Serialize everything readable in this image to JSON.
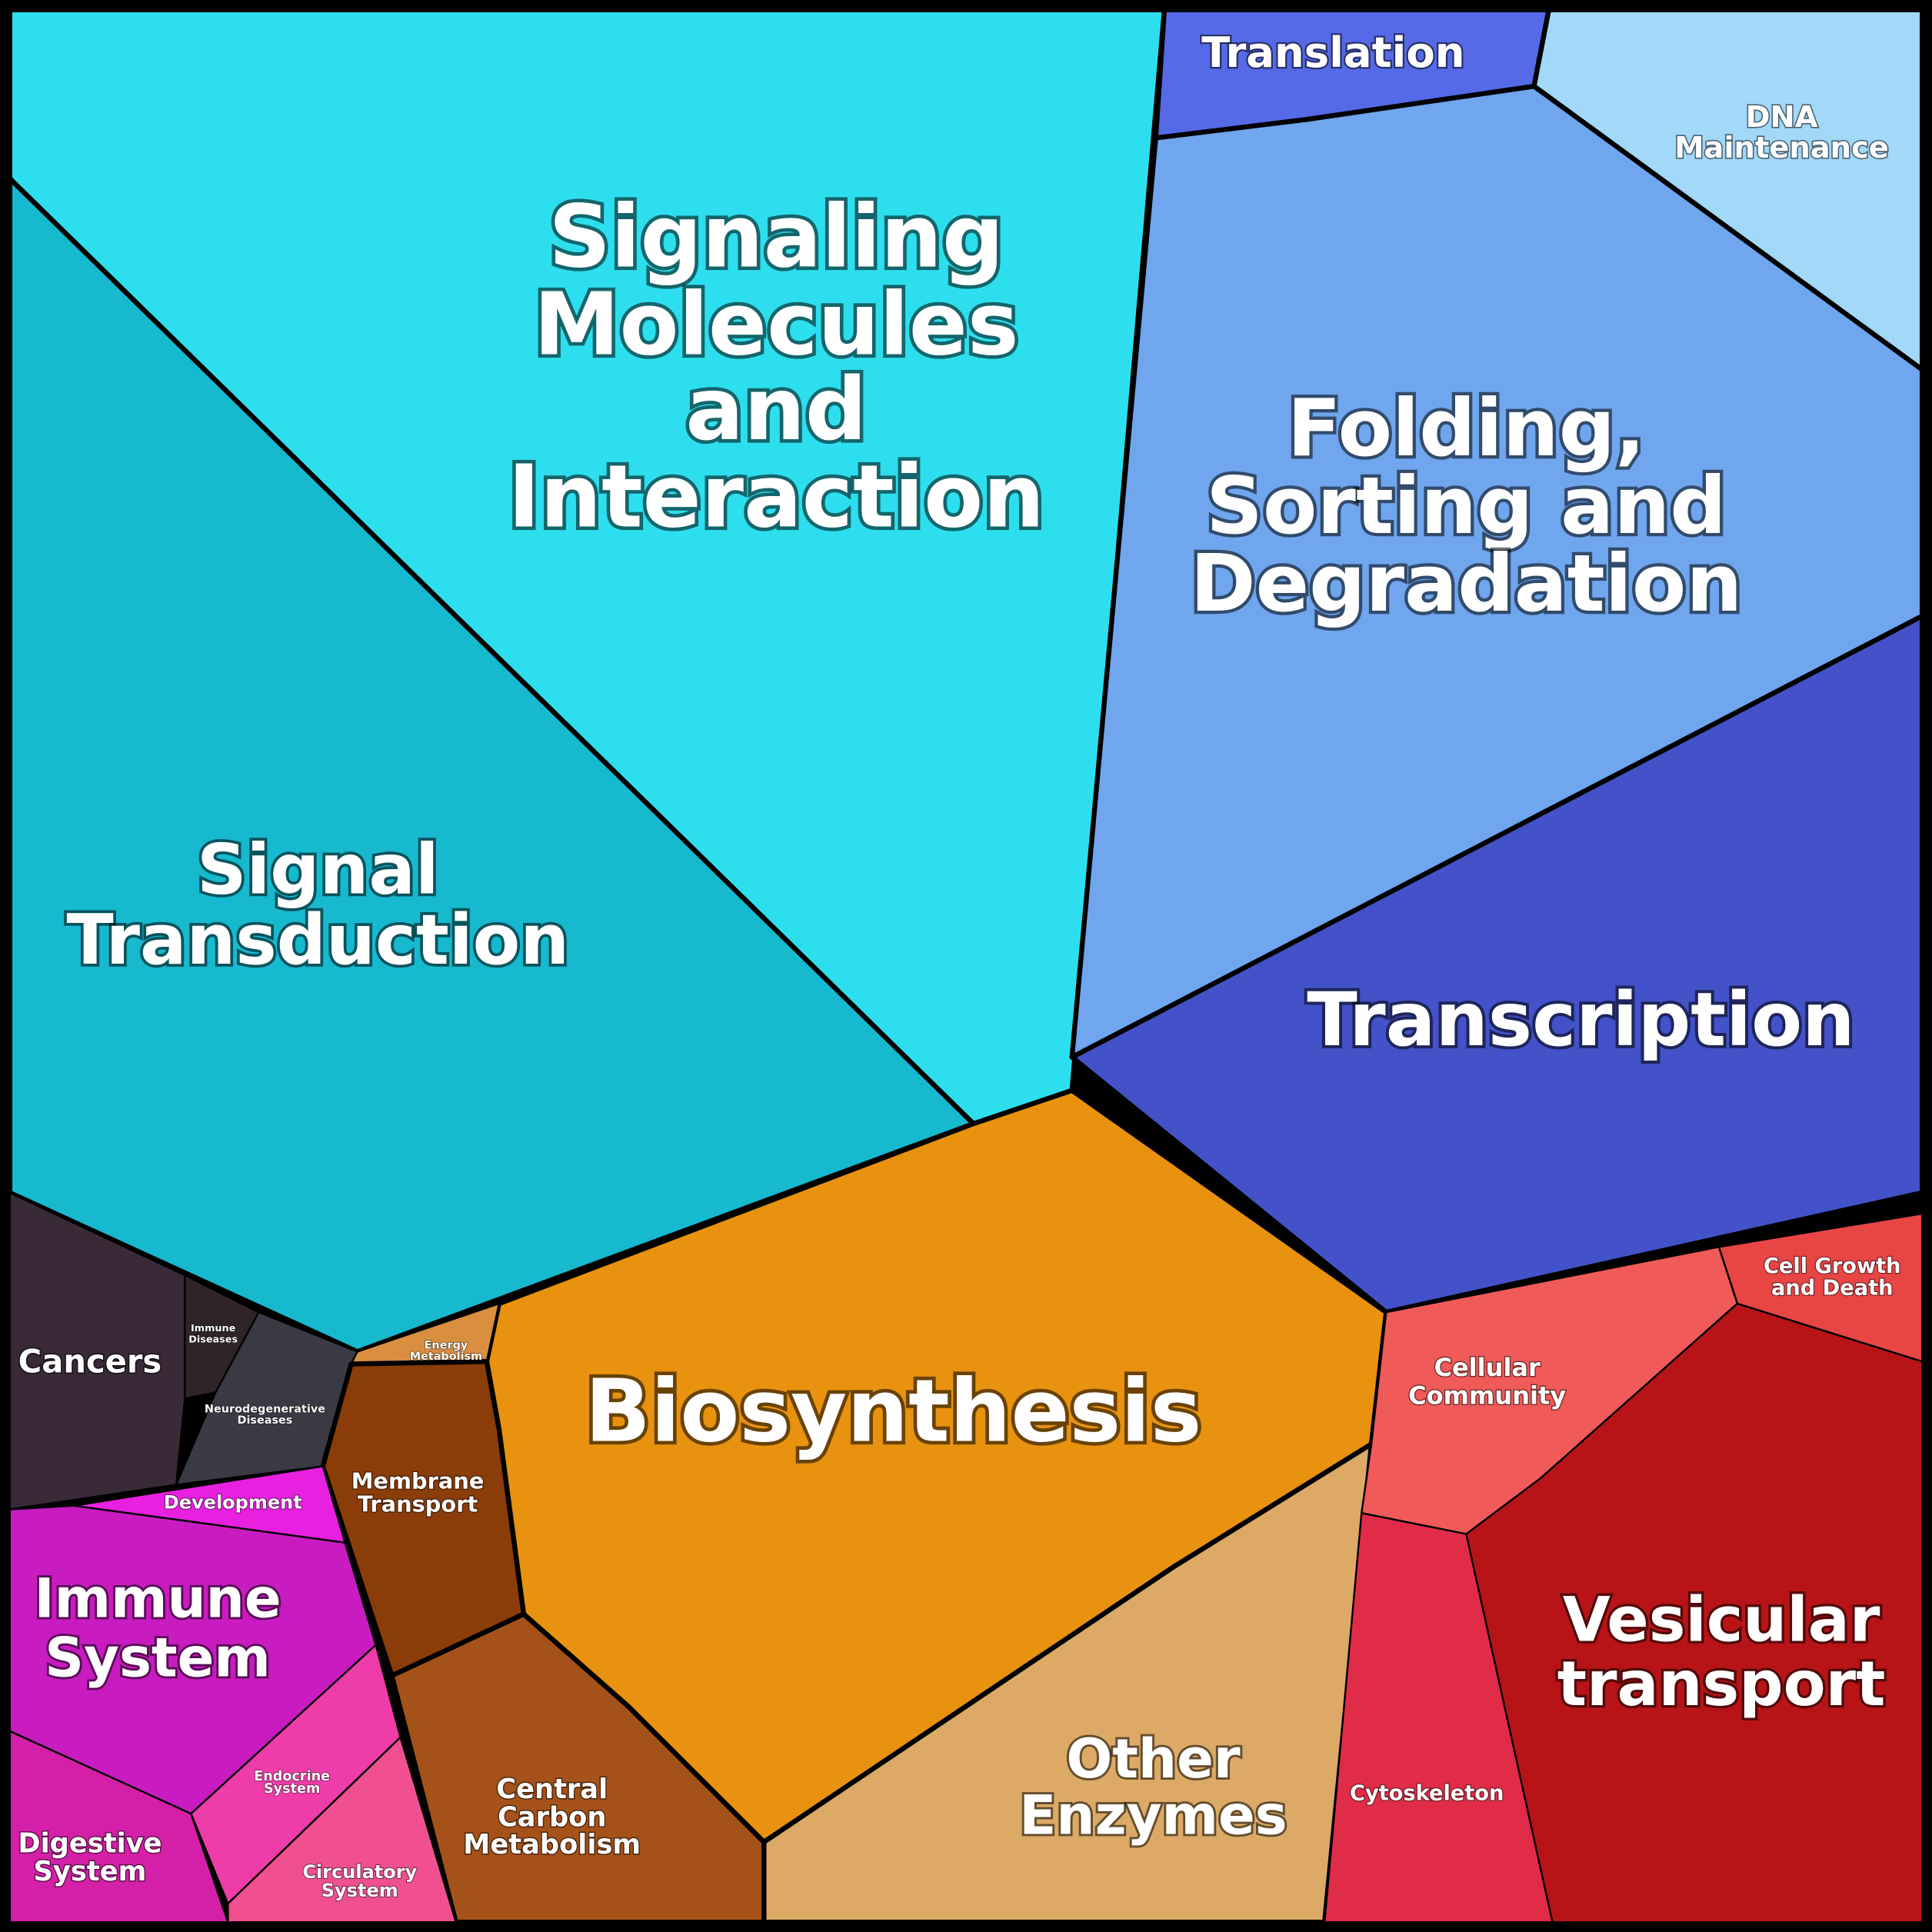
{
  "regions": [
    {
      "label": [
        "Signaling",
        "Molecules",
        "and",
        "Interaction"
      ]
    },
    {
      "label": [
        "Signal",
        "Transduction"
      ]
    },
    {
      "label": [
        "Translation"
      ]
    },
    {
      "label": [
        "DNA",
        "Maintenance"
      ]
    },
    {
      "label": [
        "Folding,",
        "Sorting and",
        "Degradation"
      ]
    },
    {
      "label": [
        "Transcription"
      ]
    },
    {
      "label": [
        "Biosynthesis"
      ]
    },
    {
      "label": [
        "Other",
        "Enzymes"
      ]
    },
    {
      "label": [
        "Cell Growth",
        "and Death"
      ]
    },
    {
      "label": [
        "Cellular",
        "Community"
      ]
    },
    {
      "label": [
        "Cytoskeleton"
      ]
    },
    {
      "label": [
        "Vesicular",
        "transport"
      ]
    },
    {
      "label": [
        "Cancers"
      ]
    },
    {
      "label": [
        "Immune",
        "Diseases"
      ]
    },
    {
      "label": [
        "Neurodegenerative",
        "Diseases"
      ]
    },
    {
      "label": [
        "Energy",
        "Metabolism"
      ]
    },
    {
      "label": [
        "Membrane",
        "Transport"
      ]
    },
    {
      "label": [
        "Central",
        "Carbon",
        "Metabolism"
      ]
    },
    {
      "label": [
        "Development"
      ]
    },
    {
      "label": [
        "Immune",
        "System"
      ]
    },
    {
      "label": [
        "Endocrine",
        "System"
      ]
    },
    {
      "label": [
        "Digestive",
        "System"
      ]
    },
    {
      "label": [
        "Circulatory",
        "System"
      ]
    }
  ]
}
